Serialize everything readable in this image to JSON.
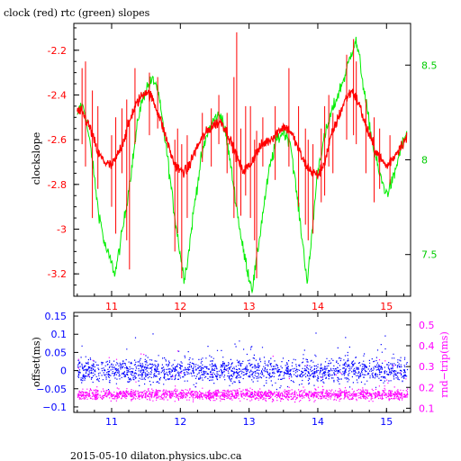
{
  "title": "clock (red) rtc (green) slopes",
  "footer": "2015-05-10  dilaton.physics.ubc.ca",
  "colors": {
    "red": "#ff0000",
    "green": "#00ee00",
    "blue": "#0000ff",
    "magenta": "#ff00ff",
    "black": "#000000"
  },
  "chart_data": [
    {
      "type": "line",
      "title": "clock (red) rtc (green) slopes",
      "ylabel": "clockslope",
      "ylabel_right": "",
      "xlim": [
        10.45,
        15.35
      ],
      "ylim_left": [
        -3.3,
        -2.08
      ],
      "ylim_right": [
        7.28,
        8.72
      ],
      "x_ticks": [
        11,
        12,
        13,
        14,
        15
      ],
      "y_ticks_left": [
        -2.2,
        -2.4,
        -2.6,
        -2.8,
        -3,
        -3.2
      ],
      "y_ticks_right": [
        8.5,
        8,
        7.5
      ],
      "x_tick_labels": [
        "11",
        "12",
        "13",
        "14",
        "15"
      ],
      "y_tick_labels_left": [
        "-2.2",
        "-2.4",
        "-2.6",
        "-2.8",
        "-3",
        "-3.2"
      ],
      "y_tick_labels_right": [
        "8.5",
        "8",
        "7.5"
      ],
      "series": [
        {
          "axis": "left",
          "color": "#ff0000",
          "x": [
            10.5,
            10.6,
            10.7,
            10.8,
            10.9,
            11.0,
            11.1,
            11.2,
            11.3,
            11.4,
            11.5,
            11.6,
            11.7,
            11.8,
            11.9,
            12.0,
            12.1,
            12.2,
            12.3,
            12.4,
            12.5,
            12.6,
            12.7,
            12.8,
            12.9,
            13.0,
            13.1,
            13.2,
            13.3,
            13.4,
            13.5,
            13.6,
            13.7,
            13.8,
            13.9,
            14.0,
            14.1,
            14.2,
            14.3,
            14.4,
            14.5,
            14.6,
            14.7,
            14.8,
            14.9,
            15.0,
            15.1,
            15.2,
            15.3
          ],
          "y": [
            -2.47,
            -2.49,
            -2.56,
            -2.66,
            -2.7,
            -2.72,
            -2.66,
            -2.58,
            -2.48,
            -2.42,
            -2.38,
            -2.42,
            -2.5,
            -2.6,
            -2.7,
            -2.74,
            -2.74,
            -2.66,
            -2.6,
            -2.56,
            -2.53,
            -2.52,
            -2.58,
            -2.66,
            -2.74,
            -2.72,
            -2.66,
            -2.62,
            -2.6,
            -2.57,
            -2.54,
            -2.56,
            -2.63,
            -2.7,
            -2.74,
            -2.76,
            -2.7,
            -2.58,
            -2.5,
            -2.42,
            -2.38,
            -2.44,
            -2.54,
            -2.62,
            -2.68,
            -2.72,
            -2.68,
            -2.63,
            -2.59
          ],
          "spikes": [
            [
              10.57,
              -2.28,
              -2.62
            ],
            [
              10.62,
              -2.25,
              -2.72
            ],
            [
              10.72,
              -2.38,
              -2.95
            ],
            [
              10.8,
              -2.45,
              -2.82
            ],
            [
              11.0,
              -2.58,
              -2.9
            ],
            [
              11.06,
              -2.5,
              -3.02
            ],
            [
              11.15,
              -2.46,
              -2.75
            ],
            [
              11.22,
              -2.42,
              -3.05
            ],
            [
              11.26,
              -2.52,
              -3.18
            ],
            [
              11.34,
              -2.28,
              -2.62
            ],
            [
              11.55,
              -2.3,
              -2.58
            ],
            [
              11.67,
              -2.32,
              -2.55
            ],
            [
              11.92,
              -2.6,
              -3.1
            ],
            [
              11.96,
              -2.55,
              -3.02
            ],
            [
              12.02,
              -2.62,
              -3.22
            ],
            [
              12.1,
              -2.58,
              -2.95
            ],
            [
              12.32,
              -2.48,
              -2.7
            ],
            [
              12.45,
              -2.46,
              -2.72
            ],
            [
              12.56,
              -2.4,
              -2.62
            ],
            [
              12.68,
              -2.48,
              -2.75
            ],
            [
              12.78,
              -2.32,
              -2.95
            ],
            [
              12.82,
              -2.12,
              -2.9
            ],
            [
              12.88,
              -2.55,
              -2.94
            ],
            [
              12.95,
              -2.45,
              -2.85
            ],
            [
              13.02,
              -2.45,
              -2.95
            ],
            [
              13.08,
              -2.6,
              -3.05
            ],
            [
              13.11,
              -2.56,
              -3.22
            ],
            [
              13.2,
              -2.5,
              -2.72
            ],
            [
              13.38,
              -2.45,
              -2.78
            ],
            [
              13.58,
              -2.28,
              -2.72
            ],
            [
              13.72,
              -2.45,
              -2.9
            ],
            [
              13.82,
              -2.55,
              -2.98
            ],
            [
              13.86,
              -2.6,
              -3.05
            ],
            [
              13.93,
              -2.62,
              -3.02
            ],
            [
              14.05,
              -2.55,
              -2.88
            ],
            [
              14.1,
              -2.45,
              -2.85
            ],
            [
              14.16,
              -2.4,
              -2.72
            ],
            [
              14.22,
              -2.48,
              -2.75
            ],
            [
              14.42,
              -2.22,
              -2.6
            ],
            [
              14.52,
              -2.15,
              -2.58
            ],
            [
              14.56,
              -2.25,
              -2.62
            ],
            [
              14.7,
              -2.42,
              -2.75
            ],
            [
              14.82,
              -2.5,
              -2.88
            ],
            [
              14.9,
              -2.55,
              -2.82
            ],
            [
              15.05,
              -2.58,
              -2.8
            ]
          ]
        },
        {
          "axis": "right",
          "color": "#00ee00",
          "x": [
            10.5,
            10.55,
            10.6,
            10.7,
            10.8,
            10.9,
            11.0,
            11.05,
            11.1,
            11.2,
            11.3,
            11.4,
            11.5,
            11.6,
            11.65,
            11.7,
            11.8,
            11.9,
            12.0,
            12.05,
            12.1,
            12.2,
            12.3,
            12.4,
            12.5,
            12.6,
            12.7,
            12.8,
            12.9,
            13.0,
            13.05,
            13.1,
            13.2,
            13.3,
            13.4,
            13.5,
            13.6,
            13.7,
            13.8,
            13.85,
            13.9,
            14.0,
            14.1,
            14.2,
            14.3,
            14.4,
            14.5,
            14.55,
            14.6,
            14.7,
            14.8,
            14.9,
            15.0,
            15.1,
            15.2,
            15.3
          ],
          "y": [
            8.22,
            8.29,
            8.27,
            8.05,
            7.75,
            7.55,
            7.45,
            7.4,
            7.5,
            7.72,
            7.98,
            8.25,
            8.38,
            8.42,
            8.4,
            8.3,
            8.05,
            7.75,
            7.5,
            7.38,
            7.45,
            7.75,
            8.0,
            8.15,
            8.22,
            8.24,
            8.05,
            7.8,
            7.55,
            7.38,
            7.32,
            7.45,
            7.72,
            7.96,
            8.1,
            8.15,
            8.1,
            7.8,
            7.5,
            7.35,
            7.55,
            7.95,
            8.12,
            8.25,
            8.35,
            8.45,
            8.58,
            8.63,
            8.55,
            8.3,
            8.08,
            7.92,
            7.82,
            7.9,
            8.05,
            8.15
          ]
        }
      ]
    },
    {
      "type": "scatter",
      "ylabel": "offset(ms)",
      "ylabel_right": "rnd−trip(ms)",
      "xlim": [
        10.45,
        15.35
      ],
      "ylim_left": [
        -0.115,
        0.16
      ],
      "ylim_right": [
        0.08,
        0.56
      ],
      "x_ticks": [
        11,
        12,
        13,
        14,
        15
      ],
      "y_ticks_left": [
        0.15,
        0.1,
        0.05,
        0,
        -0.05,
        -0.1
      ],
      "y_ticks_right": [
        0.5,
        0.4,
        0.3,
        0.2,
        0.1
      ],
      "x_tick_labels": [
        "11",
        "12",
        "13",
        "14",
        "15"
      ],
      "y_tick_labels_left": [
        "0.15",
        "0.1",
        "0.05",
        "0",
        "−0.05",
        "−0.1"
      ],
      "y_tick_labels_right": [
        "0.5",
        "0.4",
        "0.3",
        "0.2",
        "0.1"
      ],
      "series": [
        {
          "axis": "left",
          "color": "#0000ff",
          "center": 0.0,
          "spread": 0.022
        },
        {
          "axis": "right",
          "color": "#ff00ff",
          "center": 0.165,
          "spread": 0.018
        }
      ]
    }
  ]
}
